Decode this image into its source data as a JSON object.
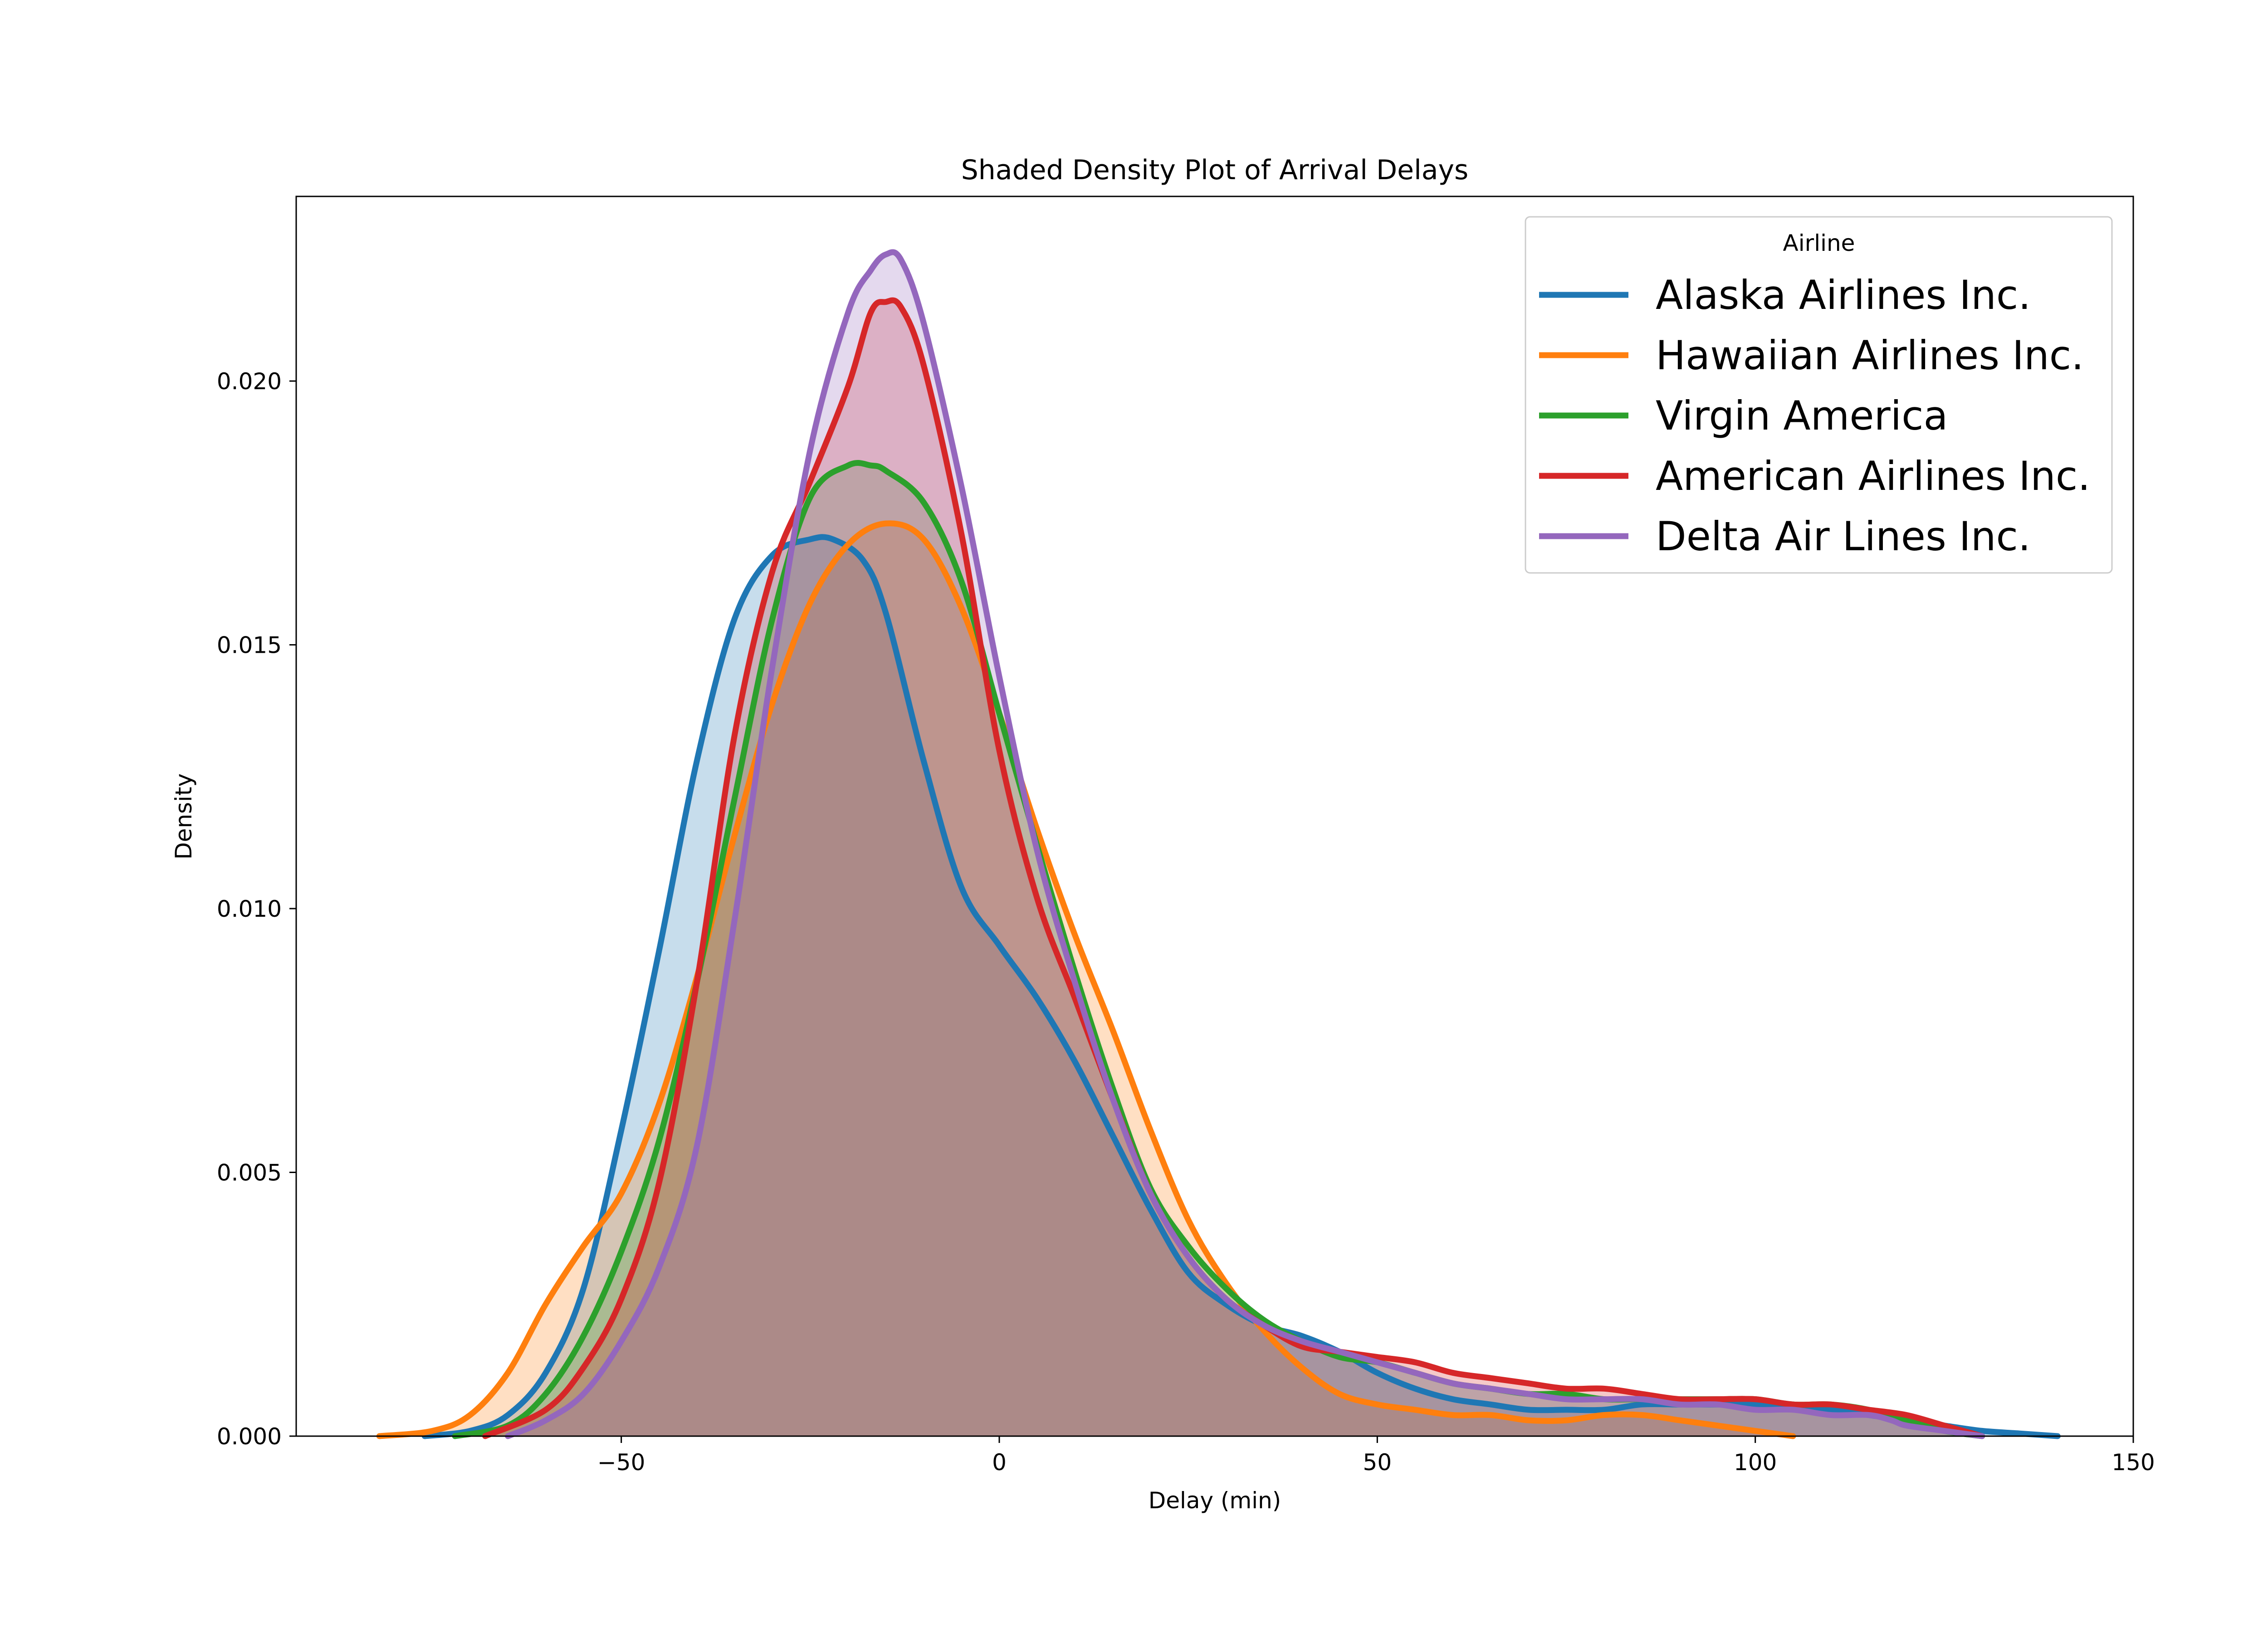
{
  "chart_data": {
    "type": "area",
    "title": "Shaded Density Plot of Arrival Delays",
    "xlabel": "Delay (min)",
    "ylabel": "Density",
    "xlim": [
      -93,
      150
    ],
    "ylim": [
      0,
      0.0235
    ],
    "xticks": [
      -50,
      0,
      50,
      100,
      150
    ],
    "xtick_labels": [
      "−50",
      "0",
      "50",
      "100",
      "150"
    ],
    "yticks": [
      0,
      0.005,
      0.01,
      0.015,
      0.02
    ],
    "ytick_labels": [
      "0.000",
      "0.005",
      "0.010",
      "0.015",
      "0.020"
    ],
    "grid": false,
    "legend": {
      "title": "Airline",
      "placement": "top-right"
    },
    "series": [
      {
        "name": "Alaska Airlines Inc.",
        "color": "#1f77b4",
        "x": [
          -76,
          -70,
          -65,
          -60,
          -55,
          -50,
          -45,
          -40,
          -35,
          -30,
          -25,
          -22,
          -18,
          -15,
          -10,
          -5,
          0,
          5,
          10,
          15,
          20,
          25,
          30,
          35,
          40,
          45,
          50,
          55,
          60,
          65,
          70,
          75,
          80,
          85,
          90,
          95,
          100,
          105,
          110,
          115,
          120,
          125,
          130,
          135,
          140
        ],
        "y": [
          0.0,
          0.0001,
          0.0004,
          0.0012,
          0.0028,
          0.0058,
          0.0092,
          0.0128,
          0.0155,
          0.0167,
          0.017,
          0.017,
          0.0166,
          0.0156,
          0.0128,
          0.0104,
          0.0093,
          0.0083,
          0.0071,
          0.0057,
          0.0043,
          0.0031,
          0.0025,
          0.0021,
          0.0019,
          0.0016,
          0.0012,
          0.0009,
          0.0007,
          0.0006,
          0.0005,
          0.0005,
          0.0005,
          0.0006,
          0.0006,
          0.0006,
          0.0006,
          0.0006,
          0.0005,
          0.0004,
          0.0003,
          0.0002,
          0.0001,
          5e-05,
          0.0
        ]
      },
      {
        "name": "Hawaiian Airlines Inc.",
        "color": "#ff7f0e",
        "x": [
          -82,
          -75,
          -70,
          -65,
          -60,
          -55,
          -50,
          -45,
          -40,
          -35,
          -30,
          -25,
          -20,
          -15,
          -10,
          -5,
          0,
          5,
          10,
          15,
          20,
          25,
          30,
          35,
          40,
          45,
          50,
          55,
          60,
          65,
          70,
          75,
          80,
          85,
          90,
          95,
          100,
          105
        ],
        "y": [
          0.0,
          0.0001,
          0.0004,
          0.0012,
          0.0025,
          0.0036,
          0.0046,
          0.0063,
          0.0087,
          0.0114,
          0.0139,
          0.0158,
          0.0169,
          0.0173,
          0.017,
          0.0157,
          0.0137,
          0.0115,
          0.0095,
          0.0077,
          0.0058,
          0.0041,
          0.0029,
          0.002,
          0.0013,
          0.0008,
          0.0006,
          0.0005,
          0.0004,
          0.0004,
          0.0003,
          0.0003,
          0.0004,
          0.0004,
          0.0003,
          0.0002,
          0.0001,
          0.0
        ]
      },
      {
        "name": "Virgin America",
        "color": "#2ca02c",
        "x": [
          -72,
          -65,
          -60,
          -55,
          -50,
          -45,
          -40,
          -35,
          -30,
          -25,
          -20,
          -17,
          -15,
          -10,
          -5,
          0,
          5,
          10,
          15,
          20,
          25,
          30,
          35,
          40,
          45,
          50,
          55,
          60,
          65,
          70,
          75,
          80,
          85,
          90,
          95,
          100,
          105,
          110,
          115,
          120,
          125,
          130
        ],
        "y": [
          0.0,
          0.0002,
          0.0008,
          0.0019,
          0.0035,
          0.0056,
          0.0086,
          0.0121,
          0.0155,
          0.0178,
          0.0184,
          0.0184,
          0.0183,
          0.0177,
          0.0162,
          0.0137,
          0.0112,
          0.0088,
          0.0066,
          0.0047,
          0.0036,
          0.0028,
          0.0022,
          0.0018,
          0.0015,
          0.0014,
          0.0012,
          0.001,
          0.0009,
          0.0008,
          0.0008,
          0.0007,
          0.0007,
          0.0007,
          0.0007,
          0.0007,
          0.0006,
          0.0006,
          0.0005,
          0.0003,
          0.0001,
          0.0
        ]
      },
      {
        "name": "American Airlines Inc.",
        "color": "#d62728",
        "x": [
          -68,
          -60,
          -55,
          -50,
          -45,
          -40,
          -35,
          -30,
          -25,
          -20,
          -17,
          -15,
          -13,
          -10,
          -5,
          0,
          5,
          10,
          15,
          20,
          25,
          30,
          35,
          40,
          45,
          50,
          55,
          60,
          65,
          70,
          75,
          80,
          85,
          90,
          95,
          100,
          105,
          110,
          115,
          120,
          125,
          130
        ],
        "y": [
          0.0,
          0.0005,
          0.0013,
          0.0026,
          0.0048,
          0.0086,
          0.0133,
          0.0164,
          0.0181,
          0.0199,
          0.0213,
          0.0215,
          0.0214,
          0.0203,
          0.0171,
          0.013,
          0.0102,
          0.0083,
          0.0064,
          0.0046,
          0.0034,
          0.0026,
          0.0021,
          0.0017,
          0.0016,
          0.0015,
          0.0014,
          0.0012,
          0.0011,
          0.001,
          0.0009,
          0.0009,
          0.0008,
          0.0007,
          0.0007,
          0.0007,
          0.0006,
          0.0006,
          0.0005,
          0.0004,
          0.0002,
          0.0
        ]
      },
      {
        "name": "Delta Air Lines Inc.",
        "color": "#9467bd",
        "x": [
          -65,
          -60,
          -55,
          -50,
          -45,
          -40,
          -35,
          -30,
          -25,
          -20,
          -17,
          -15,
          -13,
          -10,
          -5,
          0,
          5,
          10,
          15,
          20,
          25,
          30,
          35,
          40,
          45,
          50,
          55,
          60,
          65,
          70,
          75,
          80,
          85,
          90,
          95,
          100,
          105,
          110,
          115,
          118,
          120,
          125,
          130
        ],
        "y": [
          0.0,
          0.0003,
          0.0008,
          0.0018,
          0.0032,
          0.0055,
          0.0098,
          0.0146,
          0.0187,
          0.0213,
          0.0221,
          0.0224,
          0.0223,
          0.0211,
          0.018,
          0.0144,
          0.0111,
          0.0086,
          0.0064,
          0.0046,
          0.0034,
          0.0026,
          0.0021,
          0.0018,
          0.0016,
          0.0014,
          0.0012,
          0.001,
          0.0009,
          0.0008,
          0.0007,
          0.0007,
          0.0007,
          0.0006,
          0.0006,
          0.0005,
          0.0005,
          0.0004,
          0.0004,
          0.0003,
          0.0002,
          0.0001,
          0.0
        ]
      }
    ]
  }
}
